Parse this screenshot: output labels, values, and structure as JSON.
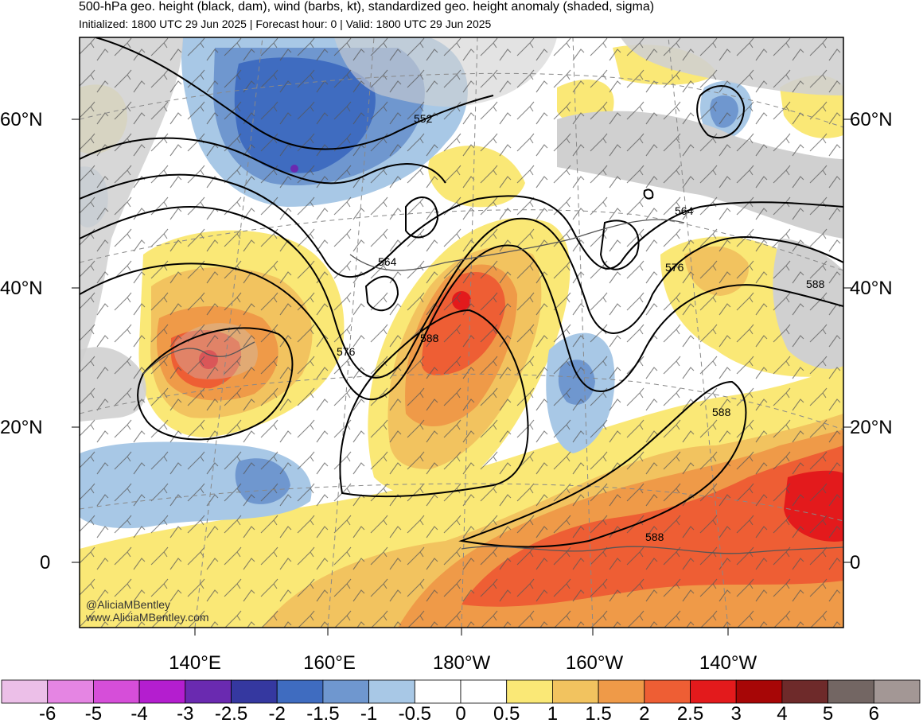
{
  "header": {
    "title": "500-hPa geo. height (black, dam), wind (barbs, kt), standardized geo. height anomaly (shaded, sigma)",
    "subtitle": "Initialized: 1800 UTC 29 Jun 2025 | Forecast hour: 0 | Valid: 1800 UTC 29 Jun 2025"
  },
  "map": {
    "lat_labels": [
      "60°N",
      "40°N",
      "20°N",
      "0"
    ],
    "lon_labels": [
      "140°E",
      "160°E",
      "180°W",
      "160°W",
      "140°W"
    ],
    "contour_labels": [
      "552",
      "564",
      "564",
      "576",
      "576",
      "588",
      "588",
      "588",
      "588"
    ],
    "watermark_handle": "@AliciaMBentley",
    "watermark_site": "www.AliciaMBentley.com"
  },
  "colorbar": {
    "labels": [
      "-6",
      "-5",
      "-4",
      "-3",
      "-2.5",
      "-2",
      "-1.5",
      "-1",
      "-0.5",
      "0",
      "0.5",
      "1",
      "1.5",
      "2",
      "2.5",
      "3",
      "4",
      "5",
      "6"
    ],
    "colors": [
      "#ecbfe8",
      "#e585e3",
      "#d64ed9",
      "#b41ecf",
      "#6a2ab0",
      "#3538a0",
      "#3f6cc0",
      "#6f97cf",
      "#a8c8e6",
      "#ffffff",
      "#ffffff",
      "#fae876",
      "#f2c35f",
      "#ef9a48",
      "#ee5e34",
      "#e31a1c",
      "#a70606",
      "#6e2a2a",
      "#736663",
      "#a39795"
    ]
  },
  "colors": {
    "land": "#d0d0d0",
    "ocean": "#ffffff",
    "contour": "#000000"
  }
}
